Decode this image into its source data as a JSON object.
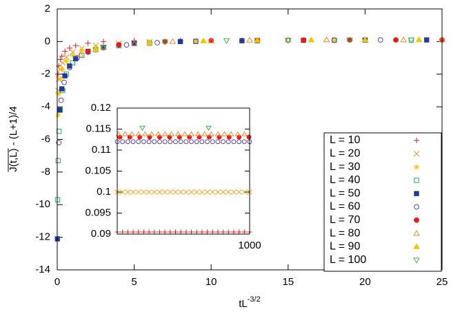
{
  "chart_data": {
    "type": "scatter",
    "ylabel": "J(t,L) - (L+1)/4",
    "xlabel": {
      "base": "tL",
      "superscript": "-3/2"
    },
    "xlim": [
      0,
      25
    ],
    "xticks": [
      0,
      5,
      10,
      15,
      20,
      25
    ],
    "ylim": [
      -14,
      2
    ],
    "yticks": [
      -14,
      -12,
      -10,
      -8,
      -6,
      -4,
      -2,
      0,
      2
    ],
    "series": [
      {
        "name": "L = 10",
        "marker": "plus",
        "color": "#e41a1c",
        "x": [
          0.05,
          0.1,
          0.2,
          0.3,
          0.5,
          0.8,
          1.2,
          2,
          3,
          5,
          8
        ],
        "values": [
          -2.0,
          -1.5,
          -1.1,
          -0.9,
          -0.6,
          -0.4,
          -0.25,
          -0.1,
          0,
          0.05,
          0.08
        ]
      },
      {
        "name": "L = 20",
        "marker": "cross",
        "color": "#ff8c1a",
        "x": [
          0.05,
          0.1,
          0.2,
          0.35,
          0.6,
          1,
          1.6,
          2.5,
          4,
          6,
          9,
          13
        ],
        "values": [
          -3.0,
          -2.3,
          -1.7,
          -1.3,
          -0.95,
          -0.65,
          -0.42,
          -0.25,
          -0.12,
          -0.03,
          0.03,
          0.07
        ]
      },
      {
        "name": "L = 30",
        "marker": "star",
        "color": "#f2c500",
        "x": [
          0.05,
          0.1,
          0.2,
          0.35,
          0.6,
          1,
          1.6,
          2.5,
          4,
          6,
          9,
          13,
          18
        ],
        "values": [
          -4.5,
          -3.2,
          -2.3,
          -1.7,
          -1.2,
          -0.85,
          -0.55,
          -0.35,
          -0.18,
          -0.07,
          0.01,
          0.06,
          0.08
        ]
      },
      {
        "name": "L = 40",
        "marker": "square-open",
        "color": "#2ca25f",
        "x": [
          0.02,
          0.06,
          0.12,
          0.2,
          0.35,
          0.6,
          1,
          1.6,
          2.5,
          4,
          6,
          9,
          13,
          18,
          23
        ],
        "values": [
          -9.7,
          -7.3,
          -5.5,
          -4.2,
          -3.0,
          -2.0,
          -1.3,
          -0.85,
          -0.5,
          -0.25,
          -0.1,
          0,
          0.05,
          0.08,
          0.09
        ]
      },
      {
        "name": "L = 50",
        "marker": "square-filled",
        "color": "#1f3a93",
        "x": [
          0.01,
          0.15,
          0.3,
          0.5,
          0.8,
          1.2,
          2,
          3,
          5,
          8,
          12,
          16,
          20,
          24
        ],
        "values": [
          -12.1,
          -4.2,
          -2.9,
          -2.1,
          -1.5,
          -1.05,
          -0.6,
          -0.35,
          -0.12,
          0,
          0.05,
          0.08,
          0.09,
          0.1
        ]
      },
      {
        "name": "L = 60",
        "marker": "circle-open",
        "color": "#5a3fa0",
        "x": [
          0.1,
          0.25,
          0.45,
          0.8,
          1.3,
          2,
          3,
          4.5,
          6.5,
          9,
          12,
          15,
          18,
          21,
          24
        ],
        "values": [
          -6.2,
          -3.6,
          -2.5,
          -1.6,
          -1.0,
          -0.65,
          -0.38,
          -0.2,
          -0.07,
          0.02,
          0.06,
          0.08,
          0.09,
          0.1,
          0.1
        ]
      },
      {
        "name": "L = 70",
        "marker": "circle-filled",
        "color": "#e41a1c",
        "x": [
          2,
          4,
          7,
          10,
          13,
          16,
          19,
          22,
          25
        ],
        "values": [
          -0.6,
          -0.2,
          0,
          0.06,
          0.08,
          0.09,
          0.1,
          0.1,
          0.1
        ]
      },
      {
        "name": "L = 80",
        "marker": "triangle-open",
        "color": "#f7882f",
        "x": [
          1.5,
          3,
          5,
          7.5,
          10,
          12.5,
          15,
          17.5,
          20,
          22.5,
          25
        ],
        "values": [
          -0.8,
          -0.35,
          -0.13,
          0,
          0.05,
          0.08,
          0.09,
          0.1,
          0.1,
          0.1,
          0.1
        ]
      },
      {
        "name": "L = 90",
        "marker": "triangle-filled",
        "color": "#f2c500",
        "x": [
          2.5,
          6,
          9.5,
          13,
          16.5,
          20,
          23.5
        ],
        "values": [
          -0.45,
          -0.06,
          0.04,
          0.08,
          0.09,
          0.1,
          0.1
        ]
      },
      {
        "name": "L = 100",
        "marker": "triangle-down-open",
        "color": "#3cb44b",
        "x": [
          3,
          7,
          11,
          15,
          19,
          23
        ],
        "values": [
          -0.35,
          -0.02,
          0.06,
          0.09,
          0.1,
          0.1
        ]
      }
    ],
    "inset": {
      "xlim": [
        0,
        1000
      ],
      "xticks": [
        1000
      ],
      "ylim": [
        0.09,
        0.12
      ],
      "yticks": [
        0.09,
        0.095,
        0.1,
        0.105,
        0.11,
        0.115,
        0.12
      ],
      "x": [
        0,
        40,
        80,
        120,
        160,
        200,
        240,
        280,
        320,
        360,
        400,
        440,
        480,
        520,
        560,
        600,
        640,
        680,
        720,
        760,
        800,
        840,
        880,
        920,
        960,
        1000
      ],
      "series": [
        {
          "marker": "plus",
          "color": "#e41a1c",
          "values": [
            0.0905,
            0.0905,
            0.0905,
            0.0905,
            0.0905,
            0.0905,
            0.0905,
            0.0905,
            0.0905,
            0.0905,
            0.0905,
            0.0905,
            0.0905,
            0.0905,
            0.0905,
            0.0905,
            0.0905,
            0.0905,
            0.0905,
            0.0905,
            0.0905,
            0.0905,
            0.0905,
            0.0905,
            0.0905,
            0.0905
          ]
        },
        {
          "marker": "cross",
          "color": "#f5a623",
          "values": [
            0.1,
            0.1,
            0.1,
            0.1,
            0.1,
            0.1,
            0.1,
            0.1,
            0.1,
            0.1,
            0.1,
            0.1,
            0.1,
            0.1,
            0.1,
            0.1,
            0.1,
            0.1,
            0.1,
            0.1,
            0.1,
            0.1,
            0.1,
            0.1,
            0.1,
            0.1
          ]
        },
        {
          "marker": "circle-open",
          "color": "#5a3fa0",
          "values": [
            0.112,
            0.112,
            0.112,
            0.112,
            0.112,
            0.112,
            0.112,
            0.112,
            0.112,
            0.112,
            0.112,
            0.112,
            0.112,
            0.112,
            0.112,
            0.112,
            0.112,
            0.112,
            0.112,
            0.112,
            0.112,
            0.112,
            0.112,
            0.112,
            0.112,
            0.112
          ]
        },
        {
          "marker": "circle-filled",
          "color": "#e41a1c",
          "x": [
            20,
            95,
            170,
            245,
            320,
            395,
            470,
            545,
            620,
            695,
            770,
            845,
            920,
            995
          ],
          "values": [
            0.1131,
            0.1131,
            0.1131,
            0.1131,
            0.1131,
            0.1131,
            0.1131,
            0.1131,
            0.1131,
            0.1131,
            0.1131,
            0.1131,
            0.1131,
            0.1131
          ]
        },
        {
          "marker": "triangle-open",
          "color": "#f7882f",
          "x": [
            10,
            60,
            110,
            160,
            210,
            260,
            310,
            360,
            410,
            460,
            510,
            560,
            610,
            660,
            710,
            760,
            810,
            860,
            910,
            960
          ],
          "values": [
            0.1138,
            0.1138,
            0.1138,
            0.1138,
            0.1138,
            0.1138,
            0.1138,
            0.1138,
            0.1138,
            0.1138,
            0.1138,
            0.1138,
            0.1138,
            0.1138,
            0.1138,
            0.1138,
            0.1138,
            0.1138,
            0.1138,
            0.1138
          ]
        },
        {
          "marker": "triangle-down-open",
          "color": "#3cb44b",
          "x": [
            190,
            690
          ],
          "values": [
            0.1153,
            0.1153
          ]
        }
      ]
    }
  }
}
